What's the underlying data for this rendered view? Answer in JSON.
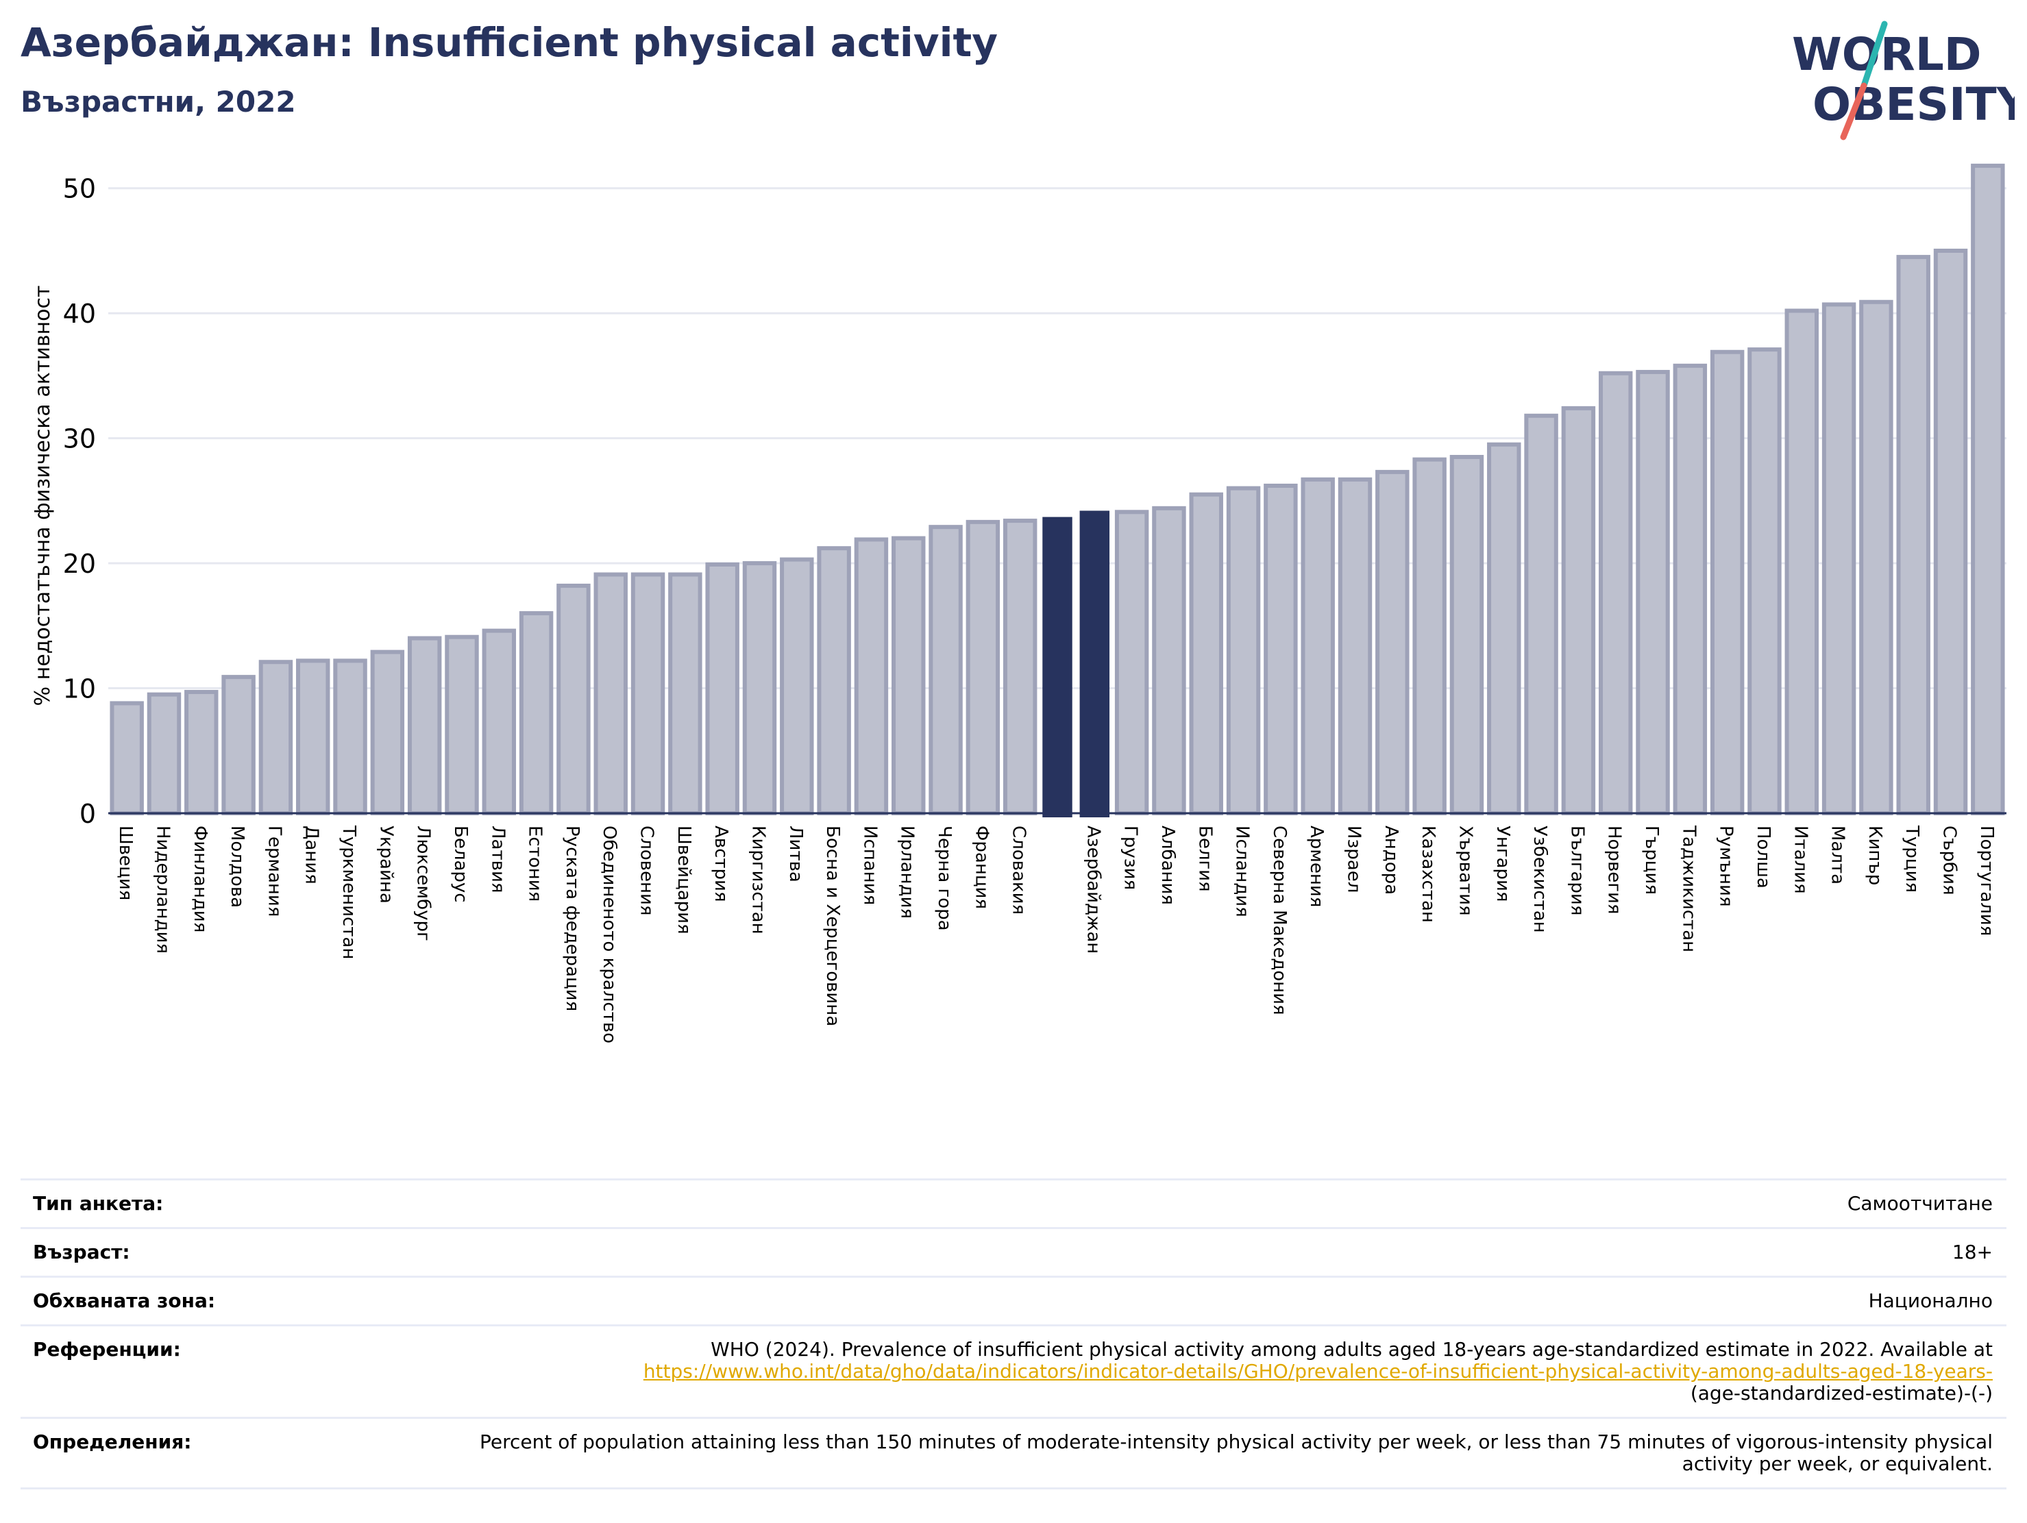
{
  "header": {
    "title": "Азербайджан: Insufficient physical activity",
    "subtitle": "Възрастни, 2022",
    "logo_line1": "WORLD",
    "logo_line2": "OBESITY"
  },
  "colors": {
    "bar_default": "#bdc0ce",
    "bar_default_edge": "#9ea2b8",
    "bar_highlight": "#27335e",
    "title": "#27335e",
    "grid": "#e6e8f0",
    "logo_teal": "#2bb5b0",
    "logo_red": "#e8655a"
  },
  "chart_data": {
    "type": "bar",
    "ylabel": "% недостатъчна физическа активност",
    "ylim": [
      0,
      53
    ],
    "yticks": [
      0,
      10,
      20,
      30,
      40,
      50
    ],
    "grid": true,
    "highlight_category": "Азербайджан",
    "categories": [
      "Швеция",
      "Нидерландия",
      "Финландия",
      "Молдова",
      "Германия",
      "Дания",
      "Туркменистан",
      "Украйна",
      "Люксембург",
      "Беларус",
      "Латвия",
      "Естония",
      "Руската федерация",
      "Обединеното кралство",
      "Словения",
      "Швейцария",
      "Австрия",
      "Киргизстан",
      "Литва",
      "Босна и Херцеговина",
      "Испания",
      "Ирландия",
      "Черна гора",
      "Франция",
      "Словакия",
      "",
      "Азербайджан",
      "Грузия",
      "Албания",
      "Белгия",
      "Исландия",
      "Северна Македония",
      "Армения",
      "Израел",
      "Андора",
      "Казахстан",
      "Хърватия",
      "Унгария",
      "Узбекистан",
      "България",
      "Норвегия",
      "Гърция",
      "Таджикистан",
      "Румъния",
      "Полша",
      "Италия",
      "Малта",
      "Кипър",
      "Турция",
      "Сърбия",
      "Португалия"
    ],
    "values": [
      8.8,
      9.5,
      9.7,
      10.9,
      12.1,
      12.2,
      12.2,
      12.9,
      14.0,
      14.1,
      14.6,
      16.0,
      18.2,
      19.1,
      19.1,
      19.1,
      19.9,
      20.0,
      20.3,
      21.2,
      21.9,
      22.0,
      22.9,
      23.3,
      23.4,
      23.7,
      24.2,
      24.1,
      24.4,
      25.5,
      26.0,
      26.2,
      26.7,
      26.7,
      27.3,
      28.3,
      28.5,
      29.5,
      31.8,
      32.4,
      35.2,
      35.3,
      35.8,
      36.9,
      37.1,
      40.2,
      40.7,
      40.9,
      44.5,
      45.0,
      51.8
    ]
  },
  "meta": {
    "survey_label": "Тип анкета:",
    "survey_value": "Самоотчитане",
    "age_label": "Възраст:",
    "age_value": "18+",
    "coverage_label": "Обхваната зона:",
    "coverage_value": "Национално",
    "references_label": "Референции:",
    "references_text": "WHO (2024). Prevalence of insufficient physical activity among adults aged 18-years age-standardized estimate in 2022. Available at",
    "references_link": "https://www.who.int/data/gho/data/indicators/indicator-details/GHO/prevalence-of-insufficient-physical-activity-among-adults-aged-18-years-",
    "references_tail": "(age-standardized-estimate)-(-)",
    "definitions_label": "Определения:",
    "definitions_text": "Percent of population attaining less than 150 minutes of moderate-intensity physical activity per week, or less than 75 minutes of vigorous-intensity physical activity per week, or equivalent."
  }
}
